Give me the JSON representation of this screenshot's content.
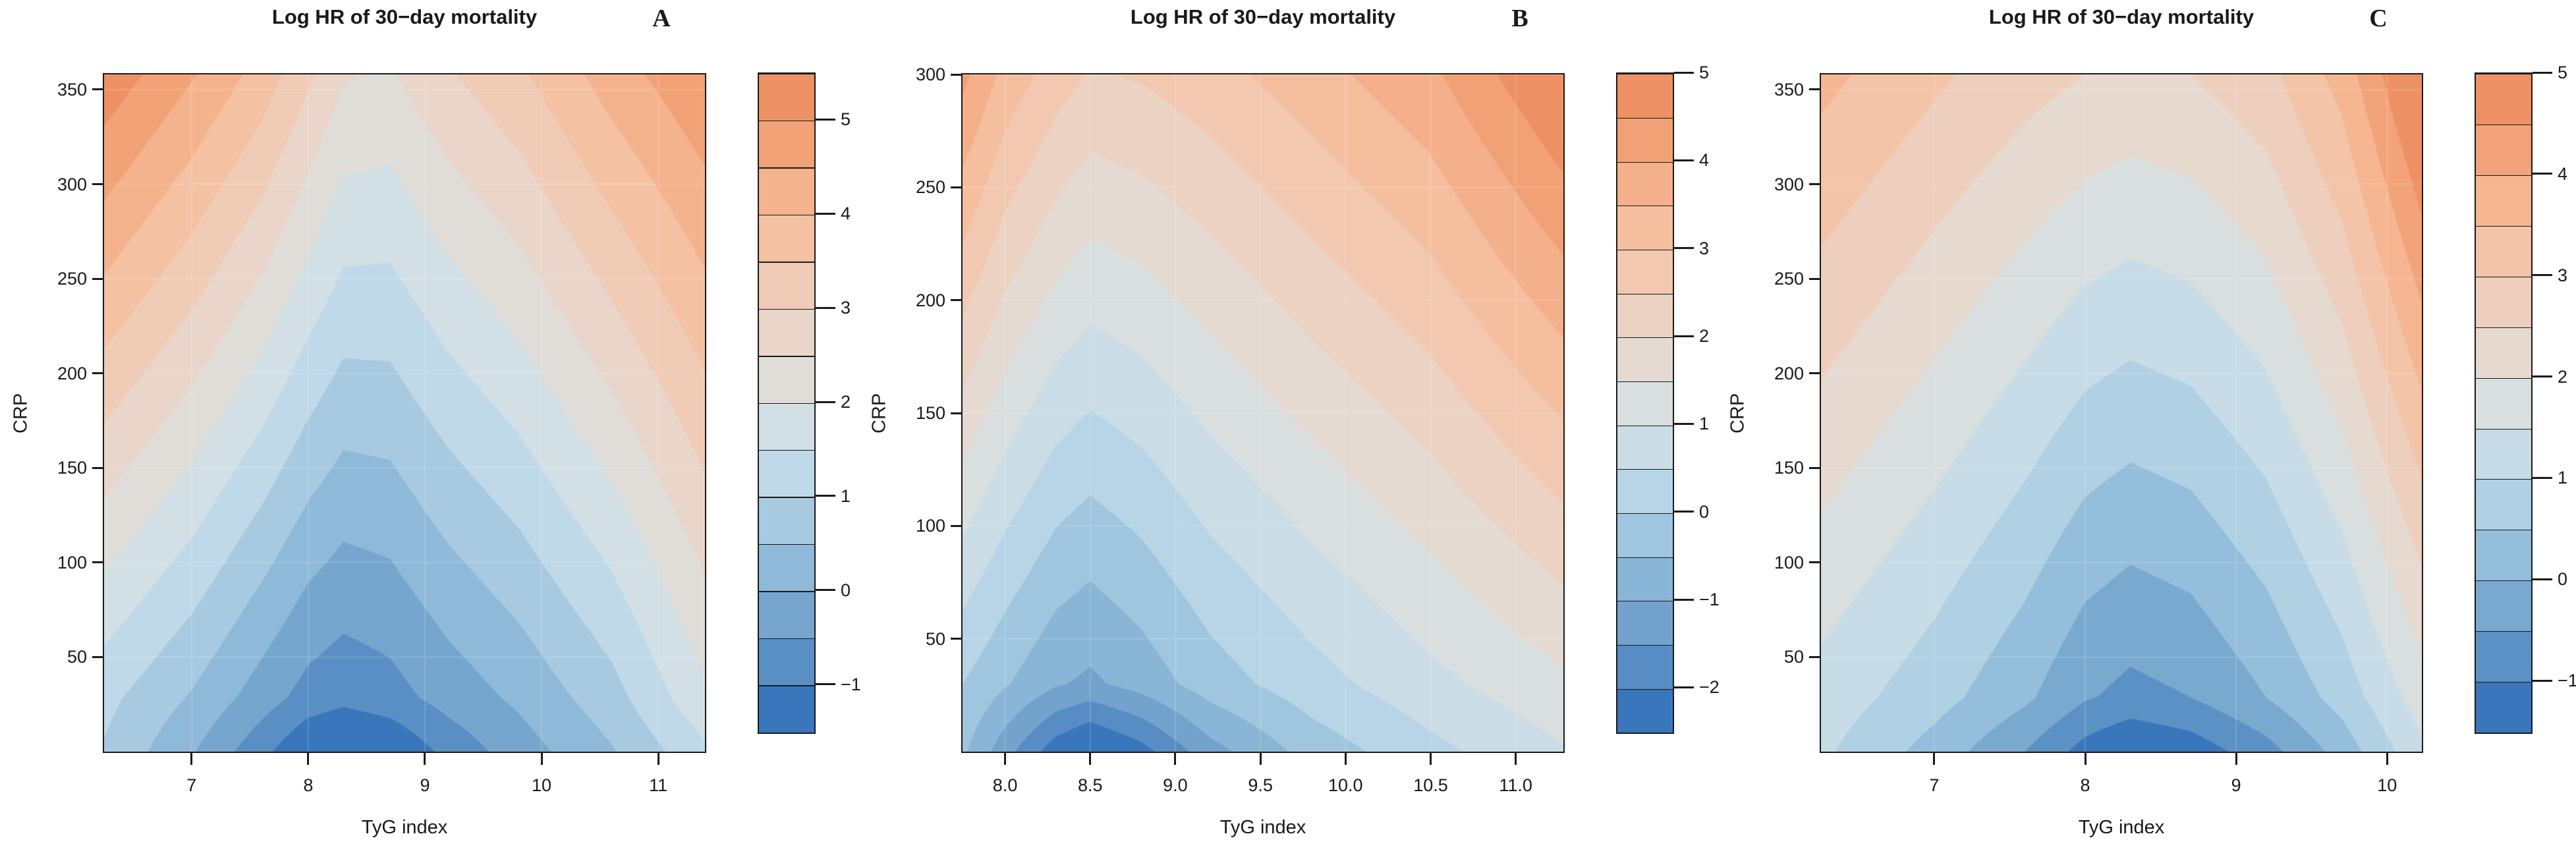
{
  "chart_data": {
    "type": "filled_contour_grid",
    "description_of_rendering": "Three filled contour (level) plots sharing the same palette ramp; z = Log HR of 30-day mortality as a function of TyG index (x) and CRP (y); contour bands every 0.5 units",
    "palette_anchors": [
      [
        0.0,
        "#3A76BB"
      ],
      [
        0.13,
        "#6FA0CB"
      ],
      [
        0.26,
        "#97C0DC"
      ],
      [
        0.37,
        "#BCD8E8"
      ],
      [
        0.46,
        "#D2E0E5"
      ],
      [
        0.53,
        "#DFDEDA"
      ],
      [
        0.61,
        "#E8D6CB"
      ],
      [
        0.7,
        "#F1CAB4"
      ],
      [
        0.8,
        "#F6BD9B"
      ],
      [
        0.9,
        "#F3A77D"
      ],
      [
        1.0,
        "#EE9164"
      ]
    ],
    "axis_color": "#1a1a1a",
    "grid_line_color": "rgba(255,255,255,0.16)",
    "panels": [
      {
        "letter": "A",
        "title": "Log HR of 30−day mortality",
        "xlabel": "TyG index",
        "ylabel": "CRP",
        "x_range": [
          6.25,
          11.4
        ],
        "y_range": [
          0,
          358
        ],
        "x_ticks": [
          {
            "v": 7,
            "label": "7"
          },
          {
            "v": 8,
            "label": "8"
          },
          {
            "v": 9,
            "label": "9"
          },
          {
            "v": 10,
            "label": "10"
          },
          {
            "v": 11,
            "label": "11"
          }
        ],
        "y_ticks": [
          {
            "v": 50,
            "label": "50"
          },
          {
            "v": 100,
            "label": "100"
          },
          {
            "v": 150,
            "label": "150"
          },
          {
            "v": 200,
            "label": "200"
          },
          {
            "v": 250,
            "label": "250"
          },
          {
            "v": 300,
            "label": "300"
          },
          {
            "v": 350,
            "label": "350"
          }
        ],
        "levels": {
          "min": -1.5,
          "max": 5.5,
          "step": 0.5
        },
        "colorbar_ticks": [
          {
            "v": 5,
            "label": "5"
          },
          {
            "v": 4,
            "label": "4"
          },
          {
            "v": 3,
            "label": "3"
          },
          {
            "v": 2,
            "label": "2"
          },
          {
            "v": 1,
            "label": "1"
          },
          {
            "v": 0,
            "label": "0"
          },
          {
            "v": -1,
            "label": "−1"
          }
        ],
        "surface": {
          "x_knots": [
            6.25,
            7.0,
            7.6,
            8.0,
            8.3,
            8.7,
            9.2,
            9.8,
            10.6,
            11.4
          ],
          "rows": [
            {
              "u": 0.0,
              "z": [
                0.95,
                0.05,
                -0.85,
                -1.5,
                -1.7,
                -1.5,
                -0.85,
                -0.25,
                0.45,
                1.4
              ]
            },
            {
              "u": 0.08,
              "z": [
                1.15,
                0.45,
                -0.25,
                -0.7,
                -0.85,
                -0.7,
                -0.3,
                0.1,
                0.8,
                1.9
              ]
            },
            {
              "u": 1.0,
              "z": [
                5.35,
                4.55,
                3.8,
                3.1,
                2.55,
                2.45,
                2.95,
                3.4,
                4.25,
                4.95
              ]
            }
          ]
        }
      },
      {
        "letter": "B",
        "title": "Log HR of 30−day mortality",
        "xlabel": "TyG index",
        "ylabel": "CRP",
        "x_range": [
          7.75,
          11.28
        ],
        "y_range": [
          0,
          300
        ],
        "x_ticks": [
          {
            "v": 8,
            "label": "8.0"
          },
          {
            "v": 8.5,
            "label": "8.5"
          },
          {
            "v": 9,
            "label": "9.0"
          },
          {
            "v": 9.5,
            "label": "9.5"
          },
          {
            "v": 10,
            "label": "10.0"
          },
          {
            "v": 10.5,
            "label": "10.5"
          },
          {
            "v": 11,
            "label": "11.0"
          }
        ],
        "y_ticks": [
          {
            "v": 50,
            "label": "50"
          },
          {
            "v": 100,
            "label": "100"
          },
          {
            "v": 150,
            "label": "150"
          },
          {
            "v": 200,
            "label": "200"
          },
          {
            "v": 250,
            "label": "250"
          },
          {
            "v": 300,
            "label": "300"
          }
        ],
        "levels": {
          "min": -2.5,
          "max": 5.0,
          "step": 0.5
        },
        "colorbar_ticks": [
          {
            "v": 5,
            "label": "5"
          },
          {
            "v": 4,
            "label": "4"
          },
          {
            "v": 3,
            "label": "3"
          },
          {
            "v": 2,
            "label": "2"
          },
          {
            "v": 1,
            "label": "1"
          },
          {
            "v": 0,
            "label": "0"
          },
          {
            "v": -1,
            "label": "−1"
          },
          {
            "v": -2,
            "label": "−2"
          }
        ],
        "surface": {
          "x_knots": [
            7.75,
            8.0,
            8.3,
            8.5,
            8.8,
            9.2,
            9.8,
            10.5,
            11.28
          ],
          "rows": [
            {
              "u": 0.0,
              "z": [
                -0.4,
                -1.3,
                -2.3,
                -2.7,
                -2.2,
                -1.2,
                -0.3,
                0.35,
                0.95
              ]
            },
            {
              "u": 0.1,
              "z": [
                0.0,
                -0.45,
                -0.95,
                -1.1,
                -0.8,
                -0.25,
                0.3,
                0.85,
                1.4
              ]
            },
            {
              "u": 1.0,
              "z": [
                4.15,
                3.35,
                2.75,
                2.45,
                2.55,
                2.8,
                3.3,
                3.9,
                5.1
              ]
            }
          ]
        }
      },
      {
        "letter": "C",
        "title": "Log HR of 30−day mortality",
        "xlabel": "TyG index",
        "ylabel": "CRP",
        "x_range": [
          6.25,
          10.23
        ],
        "y_range": [
          0,
          358
        ],
        "x_ticks": [
          {
            "v": 7,
            "label": "7"
          },
          {
            "v": 8,
            "label": "8"
          },
          {
            "v": 9,
            "label": "9"
          },
          {
            "v": 10,
            "label": "10"
          }
        ],
        "y_ticks": [
          {
            "v": 50,
            "label": "50"
          },
          {
            "v": 100,
            "label": "100"
          },
          {
            "v": 150,
            "label": "150"
          },
          {
            "v": 200,
            "label": "200"
          },
          {
            "v": 250,
            "label": "250"
          },
          {
            "v": 300,
            "label": "300"
          },
          {
            "v": 350,
            "label": "350"
          }
        ],
        "levels": {
          "min": -1.5,
          "max": 5.0,
          "step": 0.5
        },
        "colorbar_ticks": [
          {
            "v": 5,
            "label": "5"
          },
          {
            "v": 4,
            "label": "4"
          },
          {
            "v": 3,
            "label": "3"
          },
          {
            "v": 2,
            "label": "2"
          },
          {
            "v": 1,
            "label": "1"
          },
          {
            "v": 0,
            "label": "0"
          },
          {
            "v": -1,
            "label": "−1"
          }
        ],
        "surface": {
          "x_knots": [
            6.25,
            7.0,
            7.6,
            8.0,
            8.3,
            8.7,
            9.2,
            9.7,
            10.23
          ],
          "rows": [
            {
              "u": 0.0,
              "z": [
                1.1,
                0.3,
                -0.5,
                -1.2,
                -1.55,
                -1.3,
                -0.7,
                0.2,
                1.4
              ]
            },
            {
              "u": 0.08,
              "z": [
                1.3,
                0.7,
                0.1,
                -0.45,
                -0.65,
                -0.5,
                0.0,
                0.7,
                1.75
              ]
            },
            {
              "u": 1.0,
              "z": [
                3.65,
                3.1,
                2.7,
                2.5,
                2.4,
                2.5,
                2.85,
                3.7,
                5.3
              ]
            }
          ]
        }
      }
    ]
  }
}
